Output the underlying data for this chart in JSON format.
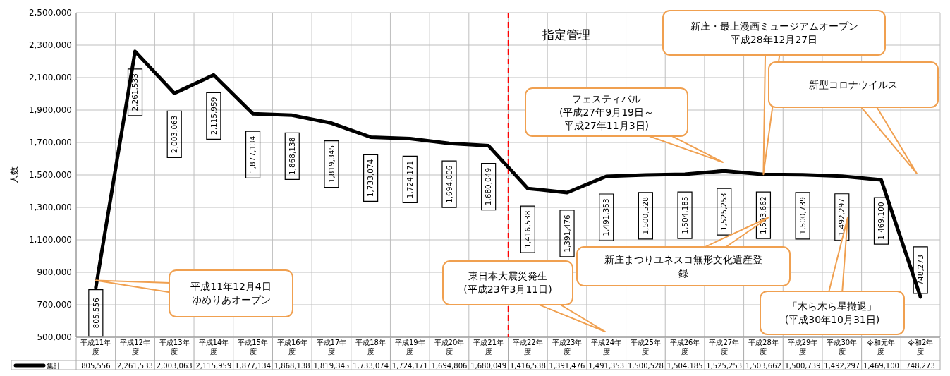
{
  "chart_data": {
    "type": "line",
    "ylabel": "人数",
    "categories": [
      "平成11年度",
      "平成12年度",
      "平成13年度",
      "平成14年度",
      "平成15年度",
      "平成16年度",
      "平成17年度",
      "平成18年度",
      "平成19年度",
      "平成20年度",
      "平成21年度",
      "平成22年度",
      "平成23年度",
      "平成24年度",
      "平成25年度",
      "平成26年度",
      "平成27年度",
      "平成28年度",
      "平成29年度",
      "平成30年度",
      "令和元年度",
      "令和2年度"
    ],
    "series": [
      {
        "name": "集計",
        "color": "#000000",
        "values": [
          805556,
          2261533,
          2003063,
          2115959,
          1877134,
          1868138,
          1819345,
          1733074,
          1724171,
          1694806,
          1680049,
          1416538,
          1391476,
          1491353,
          1500528,
          1504185,
          1525253,
          1503662,
          1500739,
          1492297,
          1469100,
          748273
        ],
        "value_labels": [
          "805,556",
          "2,261,533",
          "2,003,063",
          "2,115,959",
          "1,877,134",
          "1,868,138",
          "1,819,345",
          "1,733,074",
          "1,724,171",
          "1,694,806",
          "1,680,049",
          "1,416,538",
          "1,391,476",
          "1,491,353",
          "1,500,528",
          "1,504,185",
          "1,525,253",
          "1,503,662",
          "1,500,739",
          "1,492,297",
          "1,469,100",
          "748,273"
        ]
      }
    ],
    "ylim": [
      500000,
      2500000
    ],
    "yticks": [
      {
        "value": 500000,
        "label": "500,000"
      },
      {
        "value": 700000,
        "label": "700,000"
      },
      {
        "value": 900000,
        "label": "900,000"
      },
      {
        "value": 1100000,
        "label": "1,100,000"
      },
      {
        "value": 1300000,
        "label": "1,300,000"
      },
      {
        "value": 1500000,
        "label": "1,500,000"
      },
      {
        "value": 1700000,
        "label": "1,700,000"
      },
      {
        "value": 1900000,
        "label": "1,900,000"
      },
      {
        "value": 2100000,
        "label": "2,100,000"
      },
      {
        "value": 2300000,
        "label": "2,300,000"
      },
      {
        "value": 2500000,
        "label": "2,500,000"
      }
    ],
    "grid": true,
    "legend": "bottom left",
    "line_style": "solid",
    "ref_lines": [
      {
        "axis": "x",
        "value": "平成22年度",
        "label": "指定管理",
        "color": "#ff0000",
        "line_style": "dashed"
      }
    ],
    "annotations": [
      {
        "text": "平成11年12月4日ゆめりあオープン",
        "x": "平成11年度",
        "y": 850000
      },
      "東日本大震災発生(平成23年3月11日)",
      "フェスティバル(平成27年9月19日～平成27年11月3日)",
      {
        "text": "新庄・最上漫画ミュージアムオープン平成28年12月27日",
        "x": "平成28年度",
        "y": 1503662
      },
      "新型コロナウイルス",
      "新庄まつりユネスコ無形文化遺産登録",
      "「木ら木ら星撤退」(平成30年10月31日)"
    ]
  }
}
